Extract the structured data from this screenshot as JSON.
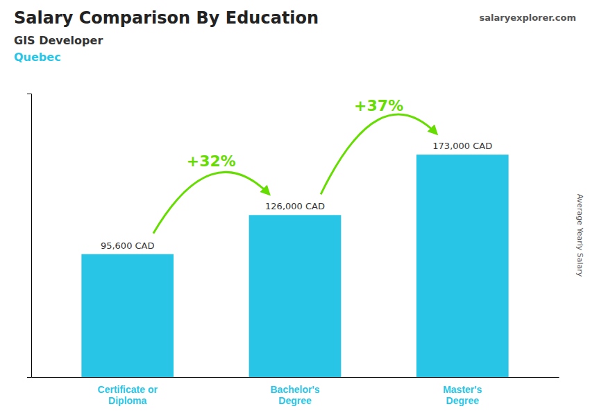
{
  "chart_data": {
    "type": "bar",
    "title": "Salary Comparison By Education",
    "subtitle": [
      "GIS Developer",
      "Quebec"
    ],
    "y_label": "Average Yearly Salary",
    "categories": [
      "Certificate or\nDiploma",
      "Bachelor's\nDegree",
      "Master's\nDegree"
    ],
    "values": [
      95600,
      126000,
      173000
    ],
    "value_labels": [
      "95,600 CAD",
      "126,000 CAD",
      "173,000 CAD"
    ],
    "data_labels": true,
    "color": "#29c5e6",
    "ylim": [
      0,
      220500
    ],
    "tick_labels": "x",
    "grid": false,
    "annotations": [
      {
        "text": "+32%",
        "color": "#66dd00",
        "between": [
          0,
          1
        ]
      },
      {
        "text": "+37%",
        "color": "#66dd00",
        "between": [
          1,
          2
        ]
      },
      {
        "text": "salaryexplorer.com"
      }
    ]
  }
}
